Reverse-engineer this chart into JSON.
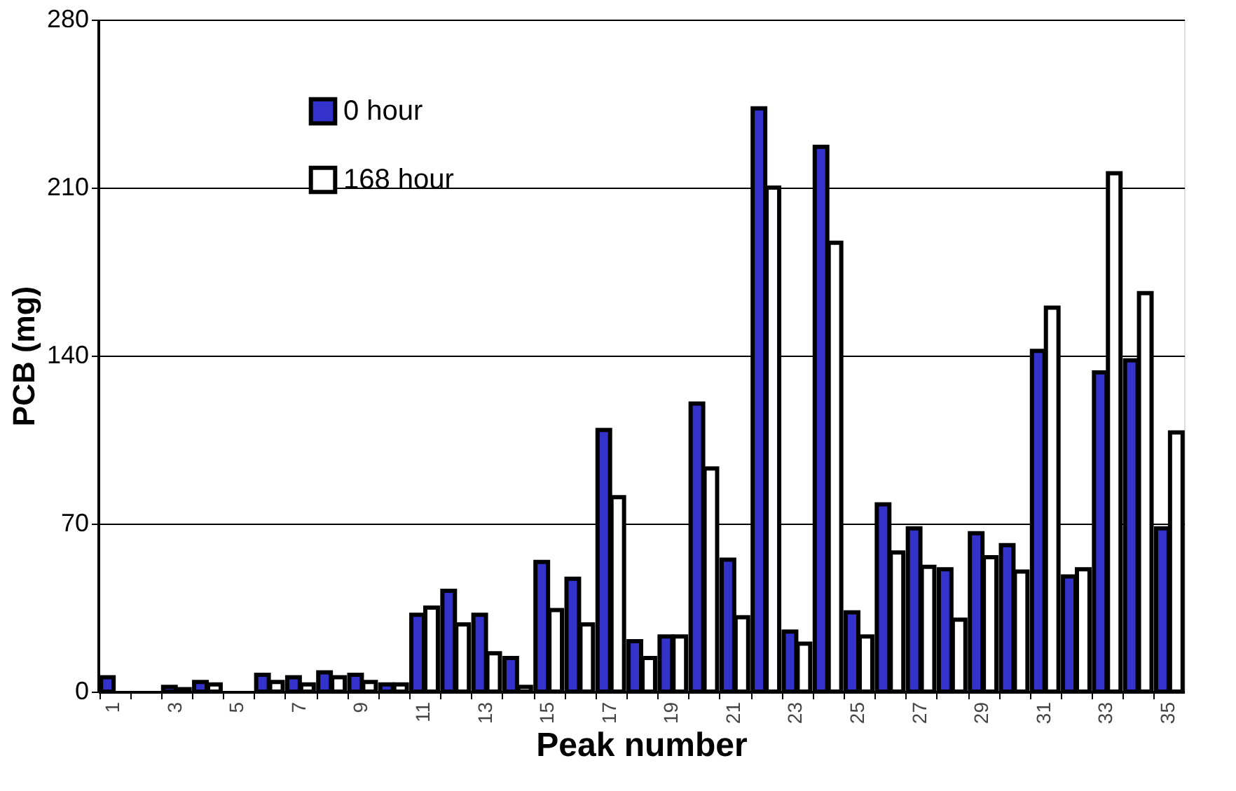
{
  "chart_data": {
    "type": "bar",
    "xlabel": "Peak number",
    "ylabel": "PCB (mg)",
    "categories": [
      "1",
      null,
      "3",
      null,
      "5",
      null,
      "7",
      null,
      "9",
      null,
      "11",
      null,
      "13",
      null,
      "15",
      null,
      "17",
      null,
      "19",
      null,
      "21",
      null,
      "23",
      null,
      "25",
      null,
      "27",
      null,
      "29",
      null,
      "31",
      null,
      "33",
      null,
      "35"
    ],
    "series": [
      {
        "name": "0 hour",
        "color": "#3333cc",
        "values": [
          6,
          null,
          2,
          4,
          null,
          7,
          6,
          8,
          7,
          3,
          32,
          42,
          32,
          14,
          54,
          47,
          109,
          21,
          23,
          120,
          55,
          243,
          25,
          227,
          33,
          78,
          68,
          51,
          66,
          61,
          142,
          48,
          133,
          138,
          68
        ]
      },
      {
        "name": "168 hour",
        "color": "#ffffff",
        "values": [
          null,
          null,
          1,
          3,
          null,
          4,
          3,
          6,
          4,
          3,
          35,
          28,
          16,
          2,
          34,
          28,
          81,
          14,
          23,
          93,
          31,
          210,
          20,
          187,
          23,
          58,
          52,
          30,
          56,
          50,
          160,
          51,
          216,
          166,
          108
        ]
      }
    ],
    "ylim": [
      0,
      280
    ],
    "yticks": [
      0,
      70,
      140,
      210,
      280
    ],
    "grid": "y",
    "legend": "top left"
  }
}
